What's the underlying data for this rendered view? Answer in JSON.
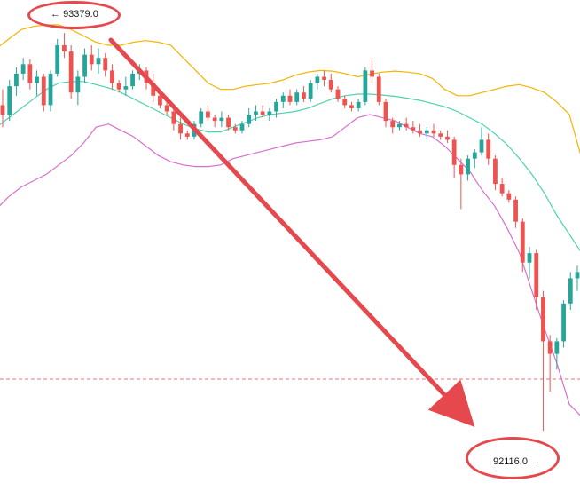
{
  "chart_data": {
    "type": "candlestick",
    "instrument": "",
    "overlays": [
      "bollinger-upper",
      "bollinger-middle",
      "bollinger-lower"
    ],
    "colors": {
      "up": "#26a69a",
      "down": "#ef5350",
      "bb_upper": "#f5b400",
      "bb_middle": "#4fd1b0",
      "bb_lower": "#d96fcf",
      "price_line": "#e57373",
      "annotation": "#e5484d"
    },
    "high_marker": {
      "value": "93379.0",
      "arrow": "←"
    },
    "low_marker": {
      "value": "92116.0",
      "arrow": "→"
    },
    "candles_ohlc": [
      [
        93150,
        93200,
        93080,
        93120
      ],
      [
        93120,
        93230,
        93100,
        93210
      ],
      [
        93210,
        93270,
        93180,
        93250
      ],
      [
        93250,
        93300,
        93230,
        93280
      ],
      [
        93280,
        93295,
        93200,
        93220
      ],
      [
        93220,
        93260,
        93180,
        93240
      ],
      [
        93240,
        93250,
        93130,
        93150
      ],
      [
        93150,
        93260,
        93130,
        93250
      ],
      [
        93250,
        93360,
        93240,
        93340
      ],
      [
        93340,
        93379,
        93300,
        93320
      ],
      [
        93320,
        93340,
        93170,
        93190
      ],
      [
        93190,
        93260,
        93150,
        93240
      ],
      [
        93240,
        93330,
        93220,
        93310
      ],
      [
        93310,
        93340,
        93260,
        93280
      ],
      [
        93280,
        93330,
        93250,
        93300
      ],
      [
        93300,
        93315,
        93240,
        93260
      ],
      [
        93260,
        93280,
        93200,
        93220
      ],
      [
        93220,
        93230,
        93190,
        93200
      ],
      [
        93200,
        93240,
        93180,
        93210
      ],
      [
        93210,
        93260,
        93200,
        93250
      ],
      [
        93250,
        93280,
        93230,
        93260
      ],
      [
        93260,
        93270,
        93200,
        93220
      ],
      [
        93220,
        93250,
        93160,
        93180
      ],
      [
        93180,
        93200,
        93140,
        93150
      ],
      [
        93150,
        93160,
        93120,
        93130
      ],
      [
        93130,
        93140,
        93070,
        93090
      ],
      [
        93090,
        93110,
        93040,
        93060
      ],
      [
        93060,
        93070,
        93040,
        93050
      ],
      [
        93050,
        93100,
        93040,
        93090
      ],
      [
        93090,
        93140,
        93080,
        93130
      ],
      [
        93130,
        93150,
        93100,
        93110
      ],
      [
        93110,
        93120,
        93080,
        93100
      ],
      [
        93100,
        93130,
        93080,
        93110
      ],
      [
        93110,
        93120,
        93070,
        93080
      ],
      [
        93080,
        93090,
        93060,
        93070
      ],
      [
        93070,
        93100,
        93060,
        93090
      ],
      [
        93090,
        93140,
        93080,
        93120
      ],
      [
        93120,
        93150,
        93100,
        93130
      ],
      [
        93130,
        93150,
        93110,
        93120
      ],
      [
        93120,
        93140,
        93100,
        93130
      ],
      [
        93130,
        93170,
        93110,
        93160
      ],
      [
        93160,
        93190,
        93140,
        93180
      ],
      [
        93180,
        93200,
        93150,
        93160
      ],
      [
        93160,
        93200,
        93150,
        93190
      ],
      [
        93190,
        93210,
        93160,
        93170
      ],
      [
        93170,
        93230,
        93160,
        93220
      ],
      [
        93220,
        93250,
        93200,
        93240
      ],
      [
        93240,
        93260,
        93210,
        93230
      ],
      [
        93230,
        93250,
        93190,
        93200
      ],
      [
        93200,
        93210,
        93160,
        93170
      ],
      [
        93170,
        93180,
        93140,
        93150
      ],
      [
        93150,
        93160,
        93130,
        93140
      ],
      [
        93140,
        93170,
        93130,
        93160
      ],
      [
        93160,
        93270,
        93150,
        93260
      ],
      [
        93260,
        93300,
        93220,
        93240
      ],
      [
        93240,
        93250,
        93150,
        93160
      ],
      [
        93160,
        93170,
        93080,
        93100
      ],
      [
        93100,
        93110,
        93060,
        93080
      ],
      [
        93080,
        93100,
        93070,
        93090
      ],
      [
        93090,
        93110,
        93070,
        93080
      ],
      [
        93080,
        93100,
        93060,
        93070
      ],
      [
        93070,
        93090,
        93050,
        93060
      ],
      [
        93060,
        93080,
        93040,
        93070
      ],
      [
        93070,
        93090,
        93050,
        93060
      ],
      [
        93060,
        93070,
        93040,
        93050
      ],
      [
        93050,
        93070,
        93030,
        93040
      ],
      [
        93040,
        93050,
        92920,
        92960
      ],
      [
        92960,
        92980,
        92820,
        92930
      ],
      [
        92930,
        92990,
        92910,
        92980
      ],
      [
        92980,
        93010,
        92950,
        93000
      ],
      [
        93000,
        93080,
        92990,
        93040
      ],
      [
        93040,
        93060,
        92960,
        92980
      ],
      [
        92980,
        92990,
        92880,
        92900
      ],
      [
        92900,
        92920,
        92860,
        92870
      ],
      [
        92870,
        92880,
        92840,
        92850
      ],
      [
        92850,
        92860,
        92760,
        92780
      ],
      [
        92780,
        92790,
        92620,
        92650
      ],
      [
        92650,
        92700,
        92600,
        92680
      ],
      [
        92680,
        92690,
        92500,
        92540
      ],
      [
        92540,
        92560,
        92116,
        92400
      ],
      [
        92400,
        92420,
        92240,
        92360
      ],
      [
        92360,
        92410,
        92310,
        92400
      ],
      [
        92400,
        92530,
        92380,
        92520
      ],
      [
        92520,
        92620,
        92500,
        92600
      ],
      [
        92600,
        92640,
        92560,
        92620
      ]
    ],
    "bb_upper": [
      93330,
      93360,
      93390,
      93400,
      93405,
      93405,
      93390,
      93370,
      93350,
      93340,
      93340,
      93350,
      93355,
      93350,
      93340,
      93300,
      93260,
      93220,
      93200,
      93200,
      93210,
      93215,
      93220,
      93230,
      93245,
      93255,
      93260,
      93258,
      93250,
      93240,
      93248,
      93255,
      93258,
      93255,
      93250,
      93235,
      93200,
      93180,
      93180,
      93190,
      93200,
      93210,
      93215,
      93205,
      93190,
      93160,
      93120,
      92980
    ],
    "bb_middle": [
      93080,
      93110,
      93140,
      93170,
      93200,
      93220,
      93225,
      93225,
      93215,
      93205,
      93190,
      93170,
      93150,
      93130,
      93110,
      93090,
      93075,
      93065,
      93065,
      93080,
      93095,
      93110,
      93120,
      93125,
      93130,
      93140,
      93155,
      93170,
      93180,
      93185,
      93185,
      93182,
      93178,
      93172,
      93165,
      93155,
      93145,
      93130,
      93110,
      93090,
      93060,
      93025,
      92980,
      92930,
      92870,
      92800,
      92740,
      92680
    ],
    "bb_lower": [
      92820,
      92860,
      92890,
      92910,
      92930,
      92960,
      92990,
      93030,
      93080,
      93090,
      93070,
      93050,
      93020,
      92990,
      92970,
      92960,
      92955,
      92955,
      92960,
      92980,
      92990,
      93000,
      93010,
      93020,
      93030,
      93035,
      93040,
      93050,
      93080,
      93110,
      93120,
      93110,
      93100,
      93080,
      93060,
      93050,
      93020,
      92980,
      92940,
      92880,
      92830,
      92760,
      92680,
      92560,
      92440,
      92330,
      92200,
      92160
    ],
    "price_line": 92280,
    "ylim": [
      92060,
      93450
    ]
  }
}
